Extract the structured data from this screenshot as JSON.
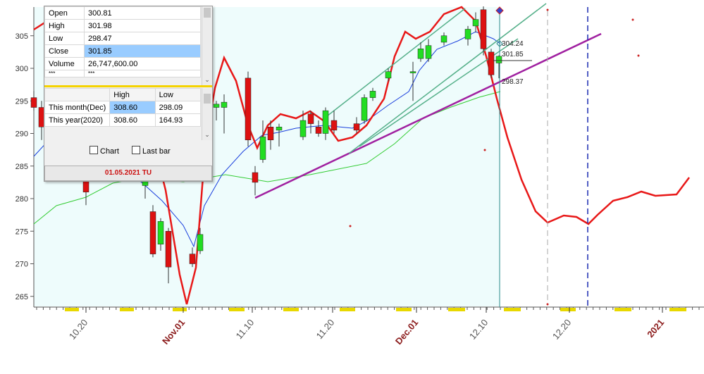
{
  "chart_data": {
    "type": "candlestick",
    "y_range": [
      264,
      310
    ],
    "y_ticks": [
      265,
      270,
      275,
      280,
      285,
      290,
      295,
      300,
      305
    ],
    "x_labels": [
      {
        "text": "10.20",
        "highlight": false
      },
      {
        "text": "Nov.01",
        "highlight": true
      },
      {
        "text": "11.10",
        "highlight": false
      },
      {
        "text": "11.20",
        "highlight": false
      },
      {
        "text": "Dec.01",
        "highlight": true
      },
      {
        "text": "12.10",
        "highlight": false
      },
      {
        "text": "12.20",
        "highlight": false
      },
      {
        "text": "2021",
        "highlight": true
      }
    ],
    "candles": [
      {
        "o": 295.5,
        "h": 296.5,
        "l": 293.5,
        "c": 294.0
      },
      {
        "o": 294.0,
        "h": 295.0,
        "l": 289.0,
        "c": 291.0
      },
      {
        "o": 283.0,
        "h": 284.0,
        "l": 279.0,
        "c": 281.0
      },
      {
        "o": 282.0,
        "h": 285.0,
        "l": 280.0,
        "c": 283.0
      },
      {
        "o": 278.0,
        "h": 279.0,
        "l": 271.0,
        "c": 271.5
      },
      {
        "o": 273.0,
        "h": 277.0,
        "l": 272.0,
        "c": 276.5
      },
      {
        "o": 275.0,
        "h": 275.5,
        "l": 267.0,
        "c": 269.5
      },
      {
        "o": 271.5,
        "h": 272.5,
        "l": 269.5,
        "c": 270.0
      },
      {
        "o": 272.0,
        "h": 275.5,
        "l": 271.5,
        "c": 274.5
      },
      {
        "o": 294.0,
        "h": 295.0,
        "l": 292.0,
        "c": 294.5
      },
      {
        "o": 294.0,
        "h": 296.0,
        "l": 290.0,
        "c": 294.8
      },
      {
        "o": 298.5,
        "h": 299.5,
        "l": 288.0,
        "c": 289.0
      },
      {
        "o": 284.0,
        "h": 285.0,
        "l": 280.5,
        "c": 282.5
      },
      {
        "o": 286.0,
        "h": 292.0,
        "l": 285.5,
        "c": 289.5
      },
      {
        "o": 291.0,
        "h": 292.0,
        "l": 287.5,
        "c": 289.0
      },
      {
        "o": 290.5,
        "h": 291.5,
        "l": 288.0,
        "c": 291.0
      },
      {
        "o": 289.5,
        "h": 293.5,
        "l": 289.0,
        "c": 292.0
      },
      {
        "o": 293.0,
        "h": 293.5,
        "l": 290.0,
        "c": 291.5
      },
      {
        "o": 291.0,
        "h": 292.0,
        "l": 289.5,
        "c": 290.0
      },
      {
        "o": 290.0,
        "h": 294.0,
        "l": 289.0,
        "c": 293.5
      },
      {
        "o": 292.0,
        "h": 293.5,
        "l": 290.0,
        "c": 290.5
      },
      {
        "o": 291.5,
        "h": 292.5,
        "l": 290.0,
        "c": 290.5
      },
      {
        "o": 292.0,
        "h": 296.0,
        "l": 291.5,
        "c": 295.5
      },
      {
        "o": 295.5,
        "h": 297.0,
        "l": 295.0,
        "c": 296.5
      },
      {
        "o": 298.5,
        "h": 300.0,
        "l": 298.0,
        "c": 299.5
      },
      {
        "o": 299.5,
        "h": 301.0,
        "l": 295.0,
        "c": 299.5
      },
      {
        "o": 301.5,
        "h": 304.0,
        "l": 301.0,
        "c": 303.0
      },
      {
        "o": 301.5,
        "h": 304.5,
        "l": 301.0,
        "c": 303.5
      },
      {
        "o": 304.0,
        "h": 305.5,
        "l": 303.5,
        "c": 305.0
      },
      {
        "o": 304.5,
        "h": 306.5,
        "l": 303.5,
        "c": 306.0
      },
      {
        "o": 306.5,
        "h": 308.6,
        "l": 305.5,
        "c": 307.5
      },
      {
        "o": 309.0,
        "h": 309.5,
        "l": 302.0,
        "c": 303.0
      },
      {
        "o": 302.5,
        "h": 303.0,
        "l": 298.5,
        "c": 299.0
      },
      {
        "o": 300.81,
        "h": 301.98,
        "l": 298.47,
        "c": 301.85
      }
    ],
    "annotations": [
      "304.24",
      "301.85",
      "298.37"
    ],
    "colors": {
      "bullish": "#22dd22",
      "bearish": "#dd1111",
      "background": "#eefcfc",
      "envelope": "#e81818",
      "ma_fast": "#1a3fdd",
      "ma_slow": "#33cc33",
      "trendline": "#a020a0",
      "channel": "#55b08a"
    }
  },
  "data_window": {
    "ohlc": [
      {
        "label": "Open",
        "value": "300.81"
      },
      {
        "label": "High",
        "value": "301.98"
      },
      {
        "label": "Low",
        "value": "298.47"
      },
      {
        "label": "Close",
        "value": "301.85"
      },
      {
        "label": "Volume",
        "value": "26,747,600.00"
      },
      {
        "label": "***",
        "value": "***"
      }
    ],
    "hl_headers": [
      "",
      "High",
      "Low"
    ],
    "hl_rows": [
      {
        "label": "This month(Dec)",
        "high": "308.60",
        "low": "298.09"
      },
      {
        "label": "This year(2020)",
        "high": "308.60",
        "low": "164.93"
      }
    ],
    "chart_option": "Chart",
    "last_bar_option": "Last bar",
    "date": "01.05.2021 TU"
  }
}
